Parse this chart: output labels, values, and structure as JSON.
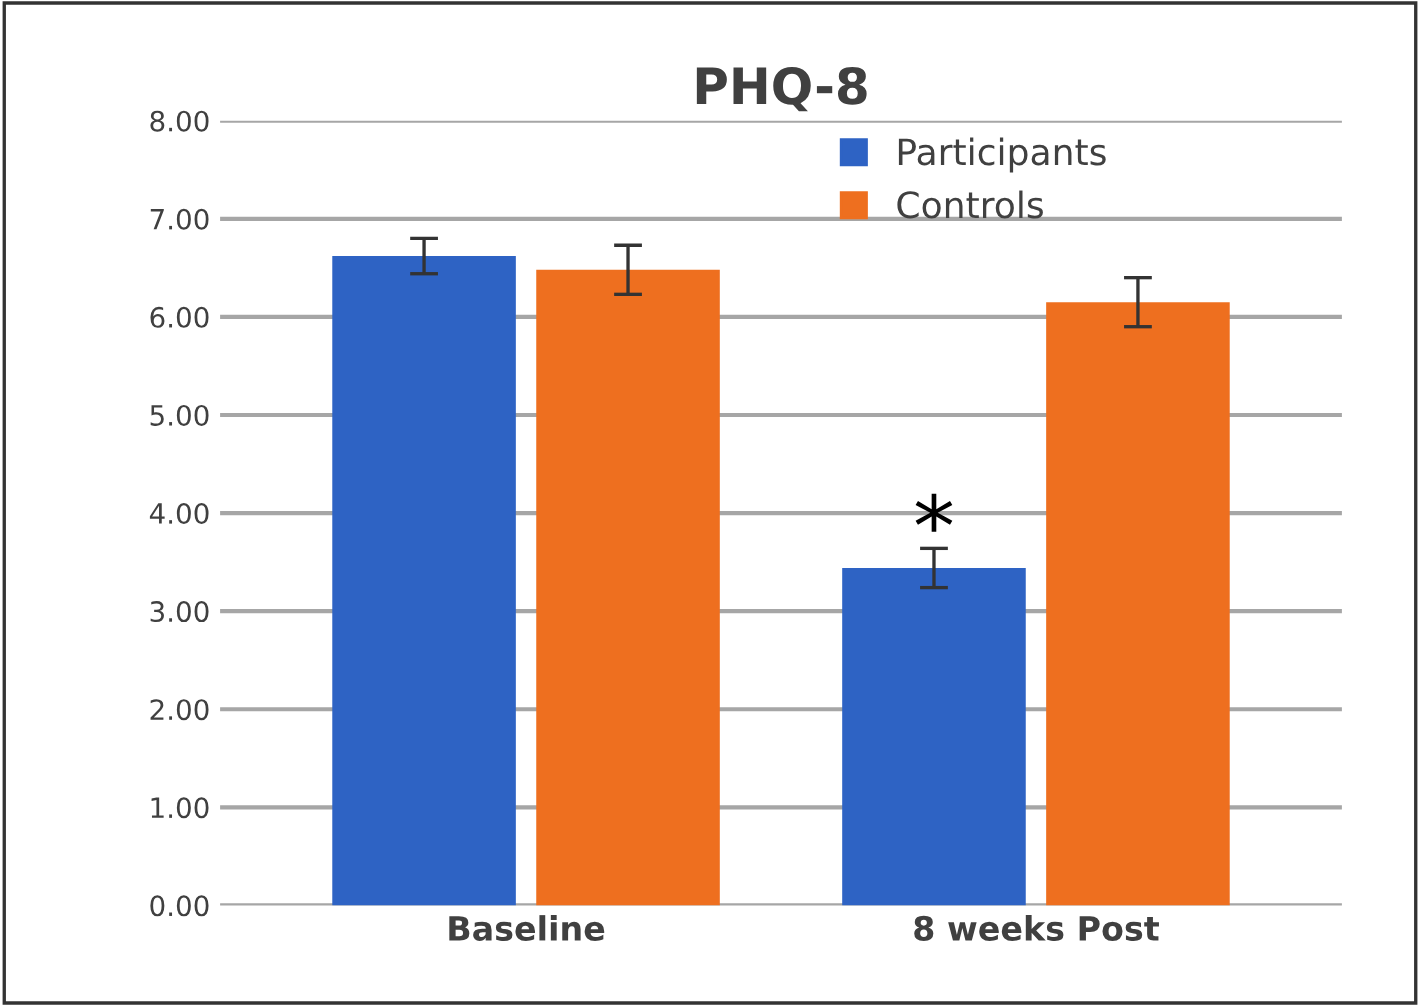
{
  "chart_data": {
    "type": "bar",
    "title": "PHQ-8",
    "categories": [
      "Baseline",
      "8 weeks Post"
    ],
    "series": [
      {
        "name": "Participants",
        "color": "#2e63c4",
        "values": [
          6.62,
          3.44
        ],
        "errors": [
          0.18,
          0.2
        ]
      },
      {
        "name": "Controls",
        "color": "#ee6f1f",
        "values": [
          6.48,
          6.15
        ],
        "errors": [
          0.25,
          0.25
        ]
      }
    ],
    "ylim": [
      0,
      8
    ],
    "yticks": [
      {
        "value": 0,
        "label": "0.00"
      },
      {
        "value": 1,
        "label": "1.00"
      },
      {
        "value": 2,
        "label": "2.00"
      },
      {
        "value": 3,
        "label": "3.00"
      },
      {
        "value": 4,
        "label": "4.00"
      },
      {
        "value": 5,
        "label": "5.00"
      },
      {
        "value": 6,
        "label": "6.00"
      },
      {
        "value": 7,
        "label": "7.00"
      },
      {
        "value": 8,
        "label": "8.00"
      }
    ],
    "grid": "y",
    "legend": "top right",
    "annotations": [
      {
        "text": "*",
        "x": "8 weeks Post",
        "y": 3.8
      }
    ]
  }
}
